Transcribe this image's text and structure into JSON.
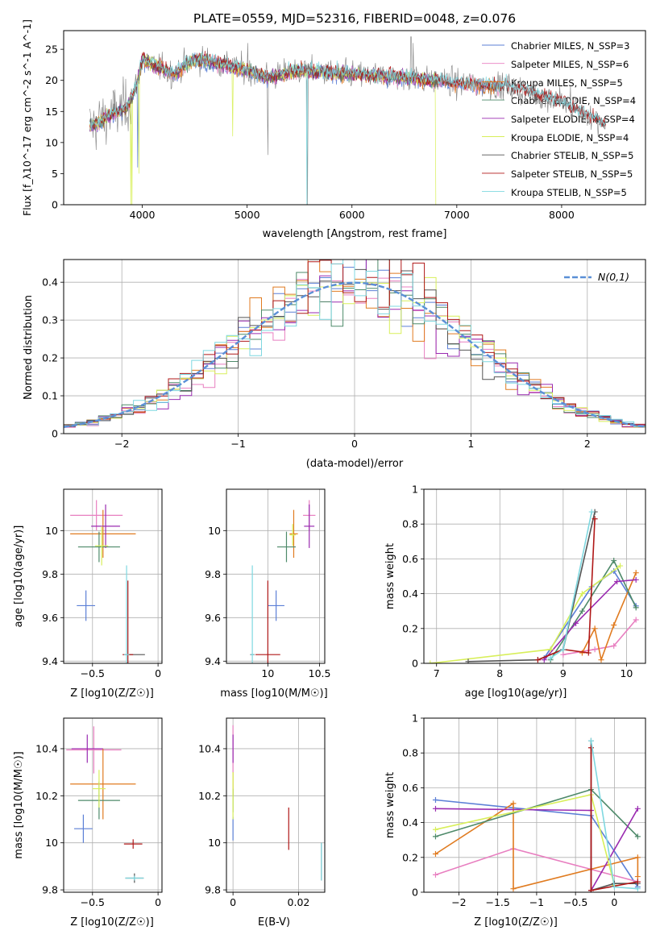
{
  "figure_title": "PLATE=0559, MJD=52316, FIBERID=0048, z=0.076",
  "colors": {
    "Chabrier MILES": "#5b7fd6",
    "Salpeter MILES": "#e87fc0",
    "Kroupa MILES": "#e07b20",
    "Chabrier ELODIE": "#4e8a6a",
    "Salpeter ELODIE": "#9a2bb0",
    "Kroupa ELODIE": "#d8ef5a",
    "Chabrier STELIB": "#555555",
    "Salpeter STELIB": "#b01818",
    "Kroupa STELIB": "#7fd8e0",
    "data_gray": "#808080",
    "gaussian": "#5b8fd6"
  },
  "chart_data": [
    {
      "id": "spectrum",
      "type": "line",
      "xlabel": "wavelength [Angstrom, rest frame]",
      "ylabel": "Flux [f_λ10^-17 erg cm^-2 s^-1 A^-1]",
      "xlim": [
        3250,
        8800
      ],
      "ylim": [
        0,
        28
      ],
      "xticks": [
        4000,
        5000,
        6000,
        7000,
        8000
      ],
      "yticks": [
        0,
        5,
        10,
        15,
        20,
        25
      ],
      "grid": false,
      "legend_position": "right",
      "legend": [
        "Chabrier MILES, N_SSP=3",
        "Salpeter MILES, N_SSP=6",
        "Kroupa MILES, N_SSP=5",
        "Chabrier ELODIE, N_SSP=4",
        "Salpeter ELODIE, N_SSP=4",
        "Kroupa ELODIE, N_SSP=4",
        "Chabrier STELIB, N_SSP=5",
        "Salpeter STELIB, N_SSP=5",
        "Kroupa STELIB, N_SSP=5"
      ],
      "continuum": {
        "x": [
          3500,
          3700,
          3850,
          3950,
          4000,
          4100,
          4300,
          4500,
          4800,
          5000,
          5200,
          5500,
          6000,
          6500,
          7000,
          7500,
          8000,
          8400
        ],
        "y": [
          12.5,
          14.5,
          15.5,
          19.5,
          23.5,
          22.5,
          21,
          23.5,
          22.5,
          21.5,
          20.5,
          21.5,
          21,
          20.5,
          19.5,
          19,
          16.5,
          13
        ]
      }
    },
    {
      "id": "residuals",
      "type": "histogram",
      "xlabel": "(data-model)/error",
      "ylabel": "Normed distribution",
      "xlim": [
        -2.5,
        2.5
      ],
      "ylim": [
        0,
        0.46
      ],
      "xticks": [
        -2,
        -1,
        0,
        1,
        2
      ],
      "yticks": [
        0.0,
        0.1,
        0.2,
        0.3,
        0.4
      ],
      "grid": true,
      "legend_position": "top-right",
      "legend": [
        "N(0,1)"
      ],
      "bin_width": 0.1
    },
    {
      "id": "age-vs-Z",
      "type": "errorbar",
      "xlabel": "Z [log10(Z/Z☉)]",
      "ylabel": "age [log10(age/yr)]",
      "xlim": [
        -0.72,
        0.03
      ],
      "ylim": [
        9.39,
        10.19
      ],
      "xticks": [
        -0.5,
        0.0
      ],
      "yticks": [
        9.4,
        9.6,
        9.8,
        10.0
      ],
      "grid": true,
      "points": [
        {
          "model": "Chabrier MILES",
          "x": -0.55,
          "y": 9.655,
          "xerr": 0.07,
          "yerr": 0.07
        },
        {
          "model": "Salpeter MILES",
          "x": -0.47,
          "y": 10.07,
          "xerr": 0.2,
          "yerr": 0.07
        },
        {
          "model": "Kroupa MILES",
          "x": -0.42,
          "y": 9.985,
          "xerr": 0.25,
          "yerr": 0.11
        },
        {
          "model": "Chabrier ELODIE",
          "x": -0.45,
          "y": 9.925,
          "xerr": 0.16,
          "yerr": 0.07
        },
        {
          "model": "Salpeter ELODIE",
          "x": -0.4,
          "y": 10.02,
          "xerr": 0.11,
          "yerr": 0.1
        },
        {
          "model": "Kroupa ELODIE",
          "x": -0.43,
          "y": 9.93,
          "xerr": 0.05,
          "yerr": 0.09
        },
        {
          "model": "Chabrier STELIB",
          "x": -0.17,
          "y": 9.43,
          "xerr": 0.07,
          "yerr": 0.0
        },
        {
          "model": "Salpeter STELIB",
          "x": -0.23,
          "y": 9.43,
          "xerr": 0.04,
          "yerr": 0.34
        },
        {
          "model": "Kroupa STELIB",
          "x": -0.24,
          "y": 9.43,
          "xerr": 0.02,
          "yerr": 0.41
        }
      ]
    },
    {
      "id": "age-vs-mass",
      "type": "errorbar",
      "xlabel": "mass [log10(M/M☉)]",
      "ylabel": "",
      "xlim": [
        9.6,
        10.55
      ],
      "ylim": [
        9.39,
        10.19
      ],
      "xticks": [
        10.0,
        10.5
      ],
      "yticks": [
        9.4,
        9.6,
        9.8,
        10.0
      ],
      "grid": true,
      "points": [
        {
          "model": "Chabrier MILES",
          "x": 10.08,
          "y": 9.655,
          "xerr": 0.08,
          "yerr": 0.07
        },
        {
          "model": "Salpeter MILES",
          "x": 10.4,
          "y": 10.07,
          "xerr": 0.06,
          "yerr": 0.07
        },
        {
          "model": "Kroupa MILES",
          "x": 10.25,
          "y": 9.985,
          "xerr": 0.04,
          "yerr": 0.11
        },
        {
          "model": "Chabrier ELODIE",
          "x": 10.18,
          "y": 9.925,
          "xerr": 0.09,
          "yerr": 0.07
        },
        {
          "model": "Salpeter ELODIE",
          "x": 10.4,
          "y": 10.02,
          "xerr": 0.05,
          "yerr": 0.1
        },
        {
          "model": "Kroupa ELODIE",
          "x": 10.24,
          "y": 9.98,
          "xerr": 0.03,
          "yerr": 0.05
        },
        {
          "model": "Chabrier STELIB",
          "x": 9.85,
          "y": 9.43,
          "xerr": 0.02,
          "yerr": 0.0
        },
        {
          "model": "Salpeter STELIB",
          "x": 10.0,
          "y": 9.43,
          "xerr": 0.12,
          "yerr": 0.34
        },
        {
          "model": "Kroupa STELIB",
          "x": 9.85,
          "y": 9.43,
          "xerr": 0.015,
          "yerr": 0.41
        }
      ]
    },
    {
      "id": "weight-vs-age",
      "type": "line",
      "xlabel": "age [log10(age/yr)]",
      "ylabel": "mass weight",
      "xlim": [
        6.8,
        10.3
      ],
      "ylim": [
        0,
        1.0
      ],
      "xticks": [
        7,
        8,
        9,
        10
      ],
      "yticks": [
        0.0,
        0.2,
        0.4,
        0.6,
        0.8,
        1.0
      ],
      "grid": true,
      "series": [
        {
          "model": "Chabrier MILES",
          "x": [
            8.7,
            9.45,
            9.8,
            10.15
          ],
          "y": [
            0.03,
            0.44,
            0.53,
            0.33
          ]
        },
        {
          "model": "Salpeter MILES",
          "x": [
            9.0,
            9.5,
            9.8,
            10.15
          ],
          "y": [
            0.05,
            0.08,
            0.1,
            0.25
          ]
        },
        {
          "model": "Kroupa MILES",
          "x": [
            9.3,
            9.5,
            9.6,
            9.8,
            10.15
          ],
          "y": [
            0.06,
            0.2,
            0.02,
            0.22,
            0.52
          ]
        },
        {
          "model": "Chabrier ELODIE",
          "x": [
            8.8,
            9.3,
            9.8,
            10.15
          ],
          "y": [
            0.02,
            0.3,
            0.59,
            0.32
          ]
        },
        {
          "model": "Salpeter ELODIE",
          "x": [
            8.7,
            9.2,
            9.85,
            10.15
          ],
          "y": [
            0.02,
            0.23,
            0.47,
            0.48
          ]
        },
        {
          "model": "Kroupa ELODIE",
          "x": [
            6.9,
            8.8,
            9.3,
            9.9
          ],
          "y": [
            0.0,
            0.08,
            0.4,
            0.56
          ]
        },
        {
          "model": "Chabrier STELIB",
          "x": [
            7.5,
            8.6,
            9.0,
            9.5
          ],
          "y": [
            0.01,
            0.02,
            0.08,
            0.87
          ]
        },
        {
          "model": "Salpeter STELIB",
          "x": [
            8.6,
            9.0,
            9.4,
            9.5
          ],
          "y": [
            0.02,
            0.08,
            0.06,
            0.83
          ]
        },
        {
          "model": "Kroupa STELIB",
          "x": [
            8.8,
            9.0,
            9.45
          ],
          "y": [
            0.03,
            0.08,
            0.87
          ]
        }
      ]
    },
    {
      "id": "mass-vs-Z",
      "type": "errorbar",
      "xlabel": "Z [log10(Z/Z☉)]",
      "ylabel": "mass [log10(M/M☉)]",
      "xlim": [
        -0.72,
        0.03
      ],
      "ylim": [
        9.79,
        10.53
      ],
      "xticks": [
        -0.5,
        0.0
      ],
      "yticks": [
        9.8,
        10.0,
        10.2,
        10.4
      ],
      "grid": true,
      "points": [
        {
          "model": "Chabrier MILES",
          "x": -0.57,
          "y": 10.06,
          "xerr": 0.07,
          "yerr": 0.06
        },
        {
          "model": "Salpeter MILES",
          "x": -0.49,
          "y": 10.395,
          "xerr": 0.21,
          "yerr": 0.1
        },
        {
          "model": "Kroupa MILES",
          "x": -0.42,
          "y": 10.25,
          "xerr": 0.25,
          "yerr": 0.15
        },
        {
          "model": "Chabrier ELODIE",
          "x": -0.45,
          "y": 10.18,
          "xerr": 0.16,
          "yerr": 0.08
        },
        {
          "model": "Salpeter ELODIE",
          "x": -0.54,
          "y": 10.4,
          "xerr": 0.12,
          "yerr": 0.06
        },
        {
          "model": "Kroupa ELODIE",
          "x": -0.45,
          "y": 10.23,
          "xerr": 0.05,
          "yerr": 0.08
        },
        {
          "model": "Chabrier STELIB",
          "x": -0.18,
          "y": 9.85,
          "xerr": 0.07,
          "yerr": 0.02
        },
        {
          "model": "Salpeter STELIB",
          "x": -0.19,
          "y": 9.995,
          "xerr": 0.07,
          "yerr": 0.02
        },
        {
          "model": "Kroupa STELIB",
          "x": -0.18,
          "y": 9.85,
          "xerr": 0.07,
          "yerr": 0.01
        }
      ]
    },
    {
      "id": "mass-vs-EBV",
      "type": "errorbar",
      "xlabel": "E(B-V)",
      "ylabel": "",
      "xlim": [
        -0.002,
        0.028
      ],
      "ylim": [
        9.79,
        10.53
      ],
      "xticks": [
        0.0,
        0.02
      ],
      "yticks": [
        9.8,
        10.0,
        10.2,
        10.4
      ],
      "grid": true,
      "points": [
        {
          "model": "Chabrier MILES",
          "x": 0.0,
          "y": 10.06,
          "xerr": 0.0,
          "yerr": 0.05
        },
        {
          "model": "Salpeter MILES",
          "x": 0.0,
          "y": 10.4,
          "xerr": 0.0,
          "yerr": 0.1
        },
        {
          "model": "Kroupa MILES",
          "x": 0.0,
          "y": 10.25,
          "xerr": 0.0,
          "yerr": 0.05
        },
        {
          "model": "Chabrier ELODIE",
          "x": 0.0,
          "y": 10.18,
          "xerr": 0.0,
          "yerr": 0.05
        },
        {
          "model": "Salpeter ELODIE",
          "x": 0.0,
          "y": 10.4,
          "xerr": 0.0,
          "yerr": 0.06
        },
        {
          "model": "Kroupa ELODIE",
          "x": 0.0,
          "y": 10.2,
          "xerr": 0.0,
          "yerr": 0.1
        },
        {
          "model": "Chabrier STELIB",
          "x": 0.027,
          "y": 9.92,
          "xerr": 0.0,
          "yerr": 0.08
        },
        {
          "model": "Salpeter STELIB",
          "x": 0.017,
          "y": 10.06,
          "xerr": 0.0,
          "yerr": 0.09
        },
        {
          "model": "Kroupa STELIB",
          "x": 0.027,
          "y": 9.92,
          "xerr": 0.0,
          "yerr": 0.08
        }
      ]
    },
    {
      "id": "weight-vs-Z",
      "type": "line",
      "xlabel": "Z [log10(Z/Z☉)]",
      "ylabel": "mass weight",
      "xlim": [
        -2.45,
        0.4
      ],
      "ylim": [
        0,
        1.0
      ],
      "xticks": [
        -2.0,
        -1.5,
        -1.0,
        -0.5,
        0.0
      ],
      "yticks": [
        0.0,
        0.2,
        0.4,
        0.6,
        0.8,
        1.0
      ],
      "grid": true,
      "series": [
        {
          "model": "Chabrier MILES",
          "x": [
            -2.3,
            -0.3,
            0.3
          ],
          "y": [
            0.53,
            0.44,
            0.03
          ]
        },
        {
          "model": "Salpeter MILES",
          "x": [
            -2.3,
            -1.3,
            0.3
          ],
          "y": [
            0.1,
            0.25,
            0.06
          ]
        },
        {
          "model": "Kroupa MILES",
          "x": [
            -2.3,
            -1.3,
            -1.3,
            0.3,
            0.3
          ],
          "y": [
            0.22,
            0.51,
            0.02,
            0.2,
            0.09
          ]
        },
        {
          "model": "Chabrier ELODIE",
          "x": [
            -2.3,
            -0.3,
            0.3
          ],
          "y": [
            0.32,
            0.59,
            0.32
          ]
        },
        {
          "model": "Salpeter ELODIE",
          "x": [
            -2.3,
            -0.3,
            -0.3,
            0.3
          ],
          "y": [
            0.48,
            0.47,
            0.01,
            0.48
          ]
        },
        {
          "model": "Kroupa ELODIE",
          "x": [
            -2.3,
            -0.3,
            0.0
          ],
          "y": [
            0.36,
            0.56,
            0.04
          ]
        },
        {
          "model": "Chabrier STELIB",
          "x": [
            -0.3,
            -0.3,
            0.0,
            0.3
          ],
          "y": [
            0.87,
            0.01,
            0.05,
            0.05
          ]
        },
        {
          "model": "Salpeter STELIB",
          "x": [
            -0.3,
            -0.3,
            0.3
          ],
          "y": [
            0.83,
            0.01,
            0.06
          ]
        },
        {
          "model": "Kroupa STELIB",
          "x": [
            -0.3,
            0.0,
            0.3
          ],
          "y": [
            0.87,
            0.03,
            0.02
          ]
        }
      ]
    }
  ]
}
